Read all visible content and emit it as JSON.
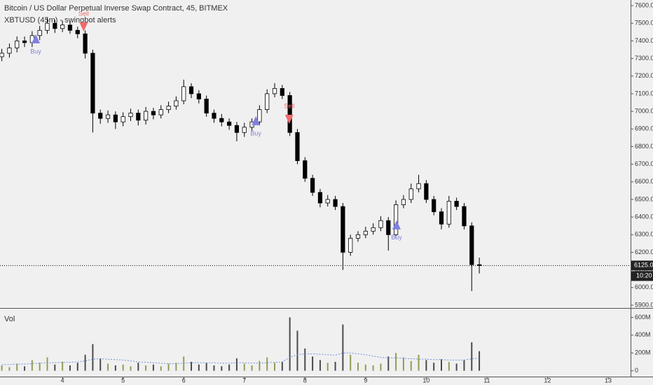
{
  "chart_data": {
    "type": "candlestick",
    "title": "Bitcoin / US Dollar Perpetual Inverse Swap Contract, 45, BITMEX",
    "subtitle": "XBTUSD (45m) - swingbot alerts",
    "volume_label": "Vol",
    "color": "#000000",
    "x": [
      3.0,
      3.125,
      3.25,
      3.375,
      3.5,
      3.625,
      3.75,
      3.875,
      4.0,
      4.125,
      4.25,
      4.375,
      4.5,
      4.625,
      4.75,
      4.875,
      5.0,
      5.125,
      5.25,
      5.375,
      5.5,
      5.625,
      5.75,
      5.875,
      6.0,
      6.125,
      6.25,
      6.375,
      6.5,
      6.625,
      6.75,
      6.875,
      7.0,
      7.125,
      7.25,
      7.375,
      7.5,
      7.625,
      7.75,
      7.875,
      8.0,
      8.125,
      8.25,
      8.375,
      8.5,
      8.625,
      8.75,
      8.875,
      9.0,
      9.125,
      9.25,
      9.375,
      9.5,
      9.625,
      9.75,
      9.875,
      10.0,
      10.125,
      10.25,
      10.375,
      10.5,
      10.625,
      10.75,
      10.875
    ],
    "open": [
      7310,
      7330,
      7360,
      7400,
      7390,
      7430,
      7460,
      7500,
      7470,
      7490,
      7460,
      7440,
      7330,
      6990,
      6960,
      6980,
      6940,
      6970,
      6990,
      6950,
      7000,
      6980,
      7010,
      7030,
      7060,
      7140,
      7100,
      7070,
      6990,
      6960,
      6940,
      6920,
      6880,
      6910,
      6940,
      7010,
      7100,
      7130,
      7090,
      6880,
      6720,
      6620,
      6540,
      6480,
      6500,
      6460,
      6200,
      6280,
      6300,
      6320,
      6340,
      6380,
      6300,
      6470,
      6500,
      6560,
      6590,
      6500,
      6430,
      6360,
      6490,
      6460,
      6350,
      6130
    ],
    "high": [
      7355,
      7385,
      7425,
      7425,
      7455,
      7485,
      7530,
      7520,
      7515,
      7510,
      7480,
      7460,
      7350,
      7010,
      7005,
      7000,
      6995,
      7015,
      7010,
      7025,
      7020,
      7035,
      7055,
      7085,
      7180,
      7160,
      7120,
      7090,
      7010,
      6985,
      6960,
      6940,
      6935,
      6960,
      7035,
      7125,
      7160,
      7150,
      7110,
      6900,
      6740,
      6640,
      6560,
      6525,
      6520,
      6480,
      6300,
      6320,
      6345,
      6365,
      6405,
      6400,
      6495,
      6525,
      6590,
      6640,
      6610,
      6520,
      6450,
      6520,
      6510,
      6480,
      6370,
      6170
    ],
    "low": [
      7285,
      7305,
      7335,
      7365,
      7365,
      7405,
      7440,
      7445,
      7450,
      7440,
      7415,
      7300,
      6880,
      6930,
      6935,
      6900,
      6915,
      6945,
      6920,
      6925,
      6955,
      6960,
      6990,
      7010,
      7040,
      7075,
      7045,
      6970,
      6935,
      6915,
      6895,
      6830,
      6855,
      6890,
      6920,
      6990,
      7080,
      7070,
      6860,
      6700,
      6600,
      6520,
      6455,
      6460,
      6440,
      6100,
      6180,
      6260,
      6280,
      6300,
      6320,
      6210,
      6280,
      6450,
      6480,
      6540,
      6480,
      6410,
      6330,
      6340,
      6440,
      6330,
      5980,
      6080
    ],
    "close": [
      7330,
      7360,
      7400,
      7390,
      7430,
      7460,
      7500,
      7470,
      7490,
      7460,
      7440,
      7330,
      6990,
      6960,
      6980,
      6940,
      6970,
      6990,
      6950,
      7000,
      6980,
      7010,
      7030,
      7060,
      7140,
      7100,
      7070,
      6990,
      6960,
      6940,
      6920,
      6880,
      6910,
      6940,
      7010,
      7100,
      7130,
      7090,
      6880,
      6720,
      6620,
      6540,
      6480,
      6500,
      6460,
      6200,
      6280,
      6300,
      6320,
      6340,
      6380,
      6300,
      6470,
      6500,
      6560,
      6590,
      6500,
      6430,
      6360,
      6490,
      6460,
      6350,
      6130,
      6125
    ],
    "volume": [
      60000000,
      40000000,
      80000000,
      50000000,
      120000000,
      90000000,
      150000000,
      70000000,
      100000000,
      60000000,
      90000000,
      180000000,
      300000000,
      140000000,
      80000000,
      60000000,
      70000000,
      50000000,
      90000000,
      60000000,
      70000000,
      50000000,
      80000000,
      90000000,
      160000000,
      100000000,
      70000000,
      90000000,
      60000000,
      50000000,
      70000000,
      140000000,
      80000000,
      60000000,
      110000000,
      150000000,
      90000000,
      100000000,
      600000000,
      450000000,
      250000000,
      160000000,
      120000000,
      90000000,
      100000000,
      520000000,
      180000000,
      90000000,
      70000000,
      60000000,
      80000000,
      160000000,
      200000000,
      150000000,
      110000000,
      180000000,
      120000000,
      90000000,
      130000000,
      100000000,
      80000000,
      120000000,
      320000000,
      220000000
    ],
    "volume_ma": [
      70000000,
      70000000,
      75000000,
      75000000,
      80000000,
      85000000,
      90000000,
      90000000,
      95000000,
      95000000,
      100000000,
      110000000,
      130000000,
      135000000,
      130000000,
      125000000,
      120000000,
      110000000,
      100000000,
      95000000,
      90000000,
      85000000,
      80000000,
      80000000,
      85000000,
      90000000,
      90000000,
      90000000,
      90000000,
      85000000,
      85000000,
      90000000,
      90000000,
      85000000,
      85000000,
      90000000,
      95000000,
      100000000,
      150000000,
      180000000,
      190000000,
      190000000,
      185000000,
      180000000,
      175000000,
      200000000,
      200000000,
      190000000,
      180000000,
      165000000,
      150000000,
      145000000,
      145000000,
      140000000,
      135000000,
      130000000,
      130000000,
      125000000,
      125000000,
      120000000,
      120000000,
      120000000,
      135000000,
      140000000
    ],
    "volume_up_color": "#8f9e55",
    "volume_down_color": "#4a4a4a",
    "volume_ma_color": "#6f8fdc",
    "xlim": [
      2.97,
      13.37
    ],
    "xticks": [
      4,
      5,
      6,
      7,
      8,
      9,
      10,
      11,
      12,
      13
    ],
    "ylim": [
      5884,
      7632
    ],
    "yticks": [
      {
        "value": 5900,
        "label": "5900.0"
      },
      {
        "value": 6000,
        "label": "6000.0"
      },
      {
        "value": 6100,
        "label": "6100.0"
      },
      {
        "value": 6200,
        "label": "6200.0"
      },
      {
        "value": 6300,
        "label": "6300.0"
      },
      {
        "value": 6400,
        "label": "6400.0"
      },
      {
        "value": 6500,
        "label": "6500.0"
      },
      {
        "value": 6600,
        "label": "6600.0"
      },
      {
        "value": 6700,
        "label": "6700.0"
      },
      {
        "value": 6800,
        "label": "6800.0"
      },
      {
        "value": 6900,
        "label": "6900.0"
      },
      {
        "value": 7000,
        "label": "7000.0"
      },
      {
        "value": 7100,
        "label": "7100.0"
      },
      {
        "value": 7200,
        "label": "7200.0"
      },
      {
        "value": 7300,
        "label": "7300.0"
      },
      {
        "value": 7400,
        "label": "7400.0"
      },
      {
        "value": 7500,
        "label": "7500.0"
      },
      {
        "value": 7600,
        "label": "7600.0"
      }
    ],
    "volume_ylim": [
      -66000000,
      690000000
    ],
    "volume_yticks": [
      {
        "value": 0,
        "label": "0"
      },
      {
        "value": 200000000,
        "label": "200M"
      },
      {
        "value": 400000000,
        "label": "400M"
      },
      {
        "value": 600000000,
        "label": "600M"
      }
    ],
    "last_price": {
      "value": 6125,
      "label": "6125.0"
    },
    "countdown": "10:20",
    "signals": [
      {
        "label": "Buy",
        "x": 3.56,
        "price": 7410,
        "color": "#8080e0"
      },
      {
        "label": "Sell",
        "x": 4.35,
        "price": 7481,
        "color": "#ef6b6b"
      },
      {
        "label": "Buy",
        "x": 7.19,
        "price": 6945,
        "color": "#8080e0"
      },
      {
        "label": "Sell",
        "x": 7.74,
        "price": 6957,
        "color": "#ef6b6b"
      },
      {
        "label": "Buy",
        "x": 9.51,
        "price": 6354,
        "color": "#8080e0"
      }
    ]
  }
}
